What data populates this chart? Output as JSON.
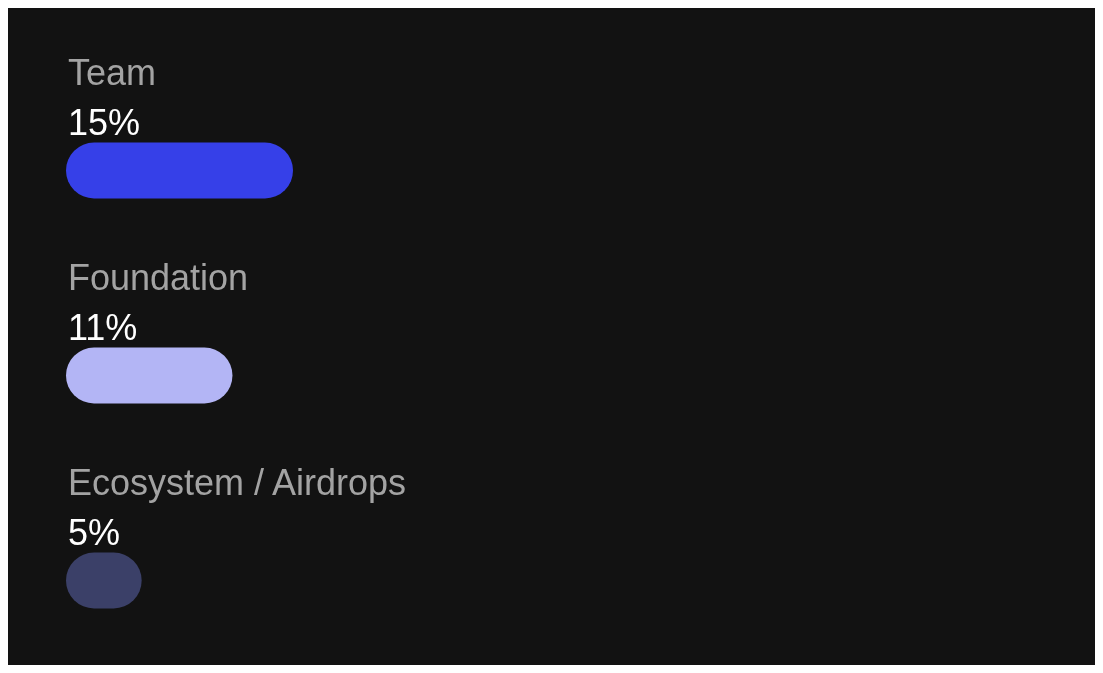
{
  "chart_data": {
    "type": "bar",
    "orientation": "horizontal",
    "categories": [
      "Team",
      "Foundation",
      "Ecosystem / Airdrops"
    ],
    "values": [
      15,
      11,
      5
    ],
    "colors": [
      "#3640e8",
      "#b3b5f5",
      "#3b4068"
    ],
    "value_labels": [
      "15%",
      "11%",
      "5%"
    ]
  }
}
